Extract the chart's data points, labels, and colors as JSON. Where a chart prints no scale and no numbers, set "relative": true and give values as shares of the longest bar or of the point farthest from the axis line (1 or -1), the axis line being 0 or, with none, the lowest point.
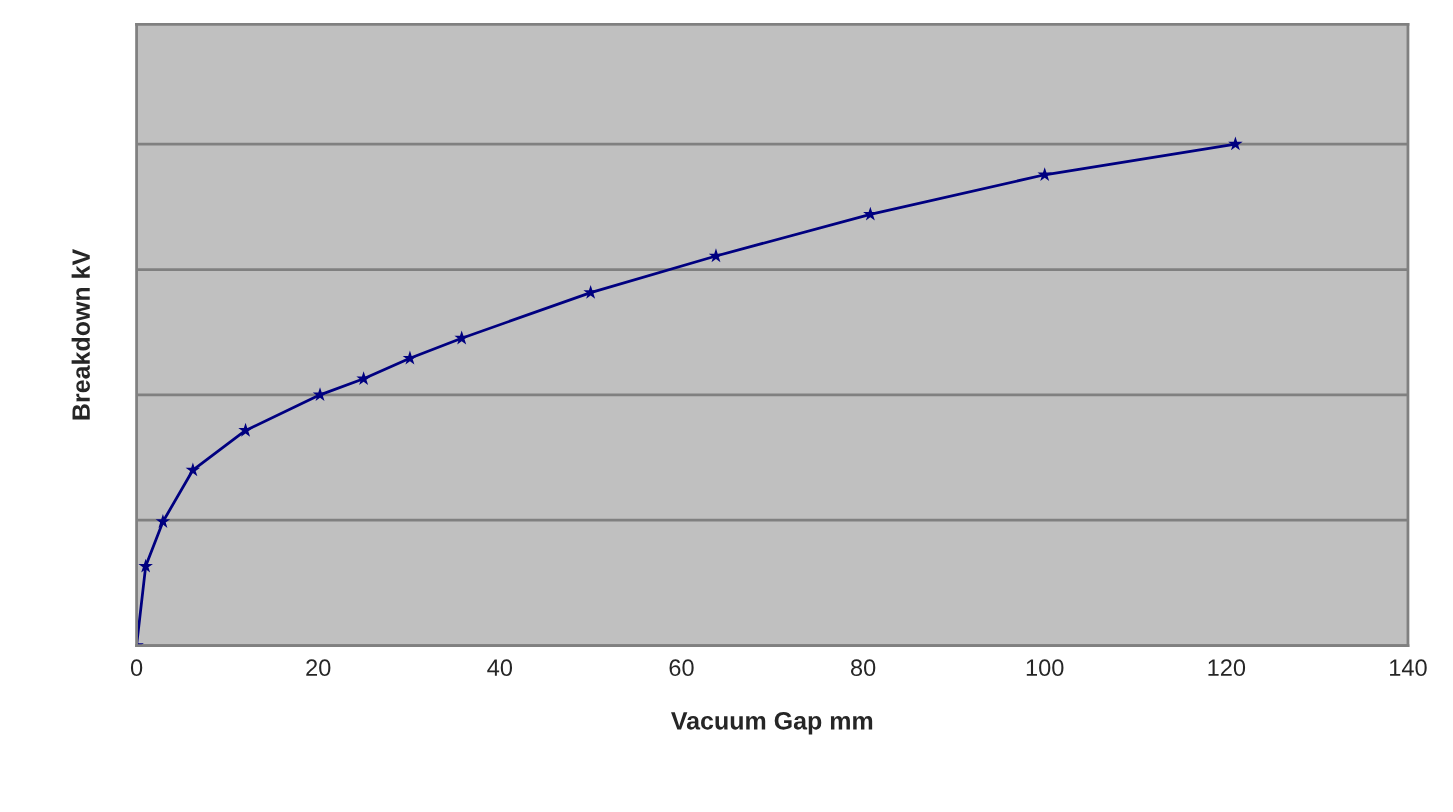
{
  "chart_data": {
    "type": "line",
    "xlabel": "Vacuum Gap mm",
    "ylabel": "Breakdown kV",
    "relative": true,
    "x": [
      0,
      1,
      2.9,
      6.2,
      12,
      20.2,
      25,
      30.1,
      35.8,
      50,
      63.8,
      80.8,
      100,
      121
    ],
    "series": [
      {
        "color": "#000080",
        "values": [
          0,
          0.158,
          0.247,
          0.35,
          0.429,
          0.5,
          0.532,
          0.573,
          0.613,
          0.704,
          0.777,
          0.86,
          0.939,
          1.0
        ]
      }
    ],
    "xlim": [
      0,
      140
    ],
    "xticks": [
      0,
      20,
      40,
      60,
      80,
      100,
      120,
      140
    ],
    "grid": "y",
    "legend": false,
    "marker": "star",
    "line_style": "solid"
  }
}
